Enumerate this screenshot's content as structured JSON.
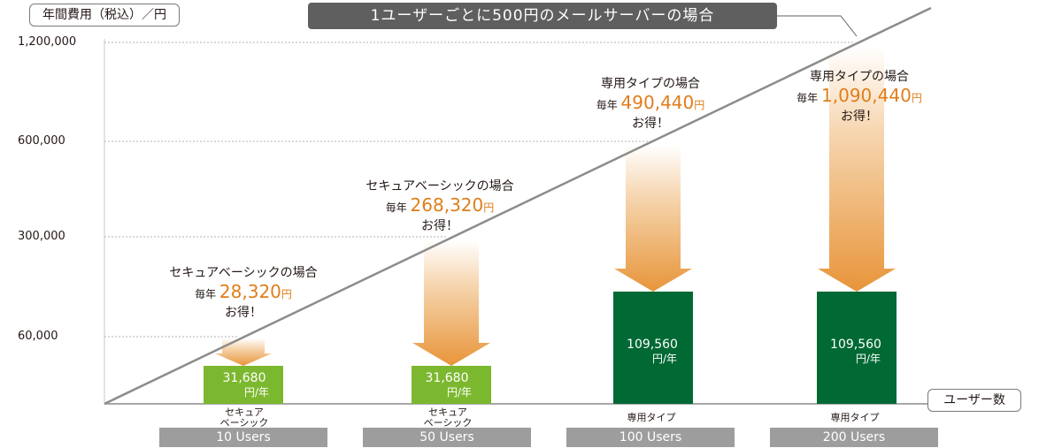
{
  "chart_data": {
    "type": "bar",
    "title": "1ユーザーごとに500円のメールサーバーの場合",
    "ylabel": "年間費用（税込）／円",
    "xlabel": "ユーザー数",
    "y_ticks": [
      "1,200,000",
      "600,000",
      "300,000",
      "60,000"
    ],
    "y_tick_values": [
      1200000,
      600000,
      300000,
      60000
    ],
    "ylim": [
      0,
      1200000
    ],
    "grid": "dashed horizontal",
    "reference_line": {
      "name": "1ユーザーごとに500円のメールサーバーの場合",
      "x": [
        0,
        10,
        50,
        100,
        200
      ],
      "values": [
        0,
        60000,
        300000,
        600000,
        1200000
      ],
      "color": "#8c8c8c"
    },
    "categories": [
      {
        "plan": "セキュア\nベーシック",
        "plan_lines": [
          "セキュア",
          "ベーシック"
        ],
        "users": "10 Users",
        "x": 10,
        "value": 31680,
        "value_label": "31,680",
        "unit": "円/年",
        "color": "#7cb82f",
        "comparison": 60000,
        "savings_plan": "セキュアベーシックの場合",
        "savings_prefix": "毎年",
        "savings": "28,320",
        "savings_unit": "円",
        "savings_suffix": "お得！"
      },
      {
        "plan": "セキュア\nベーシック",
        "plan_lines": [
          "セキュア",
          "ベーシック"
        ],
        "users": "50 Users",
        "x": 50,
        "value": 31680,
        "value_label": "31,680",
        "unit": "円/年",
        "color": "#7cb82f",
        "comparison": 300000,
        "savings_plan": "セキュアベーシックの場合",
        "savings_prefix": "毎年",
        "savings": "268,320",
        "savings_unit": "円",
        "savings_suffix": "お得！"
      },
      {
        "plan": "専用タイプ",
        "plan_lines": [
          "専用タイプ"
        ],
        "users": "100 Users",
        "x": 100,
        "value": 109560,
        "value_label": "109,560",
        "unit": "円/年",
        "color": "#006934",
        "comparison": 600000,
        "savings_plan": "専用タイプの場合",
        "savings_prefix": "毎年",
        "savings": "490,440",
        "savings_unit": "円",
        "savings_suffix": "お得！"
      },
      {
        "plan": "専用タイプ",
        "plan_lines": [
          "専用タイプ"
        ],
        "users": "200 Users",
        "x": 200,
        "value": 109560,
        "value_label": "109,560",
        "unit": "円/年",
        "color": "#006934",
        "comparison": 1200000,
        "savings_plan": "専用タイプの場合",
        "savings_prefix": "毎年",
        "savings": "1,090,440",
        "savings_unit": "円",
        "savings_suffix": "お得！"
      }
    ],
    "colors": {
      "arrow_top": "#ffffff",
      "arrow_bottom": "#e8953a",
      "savings_text": "#e07e1a",
      "users_band": "#9d9d9d",
      "title_bg": "#5f5f5f"
    }
  }
}
